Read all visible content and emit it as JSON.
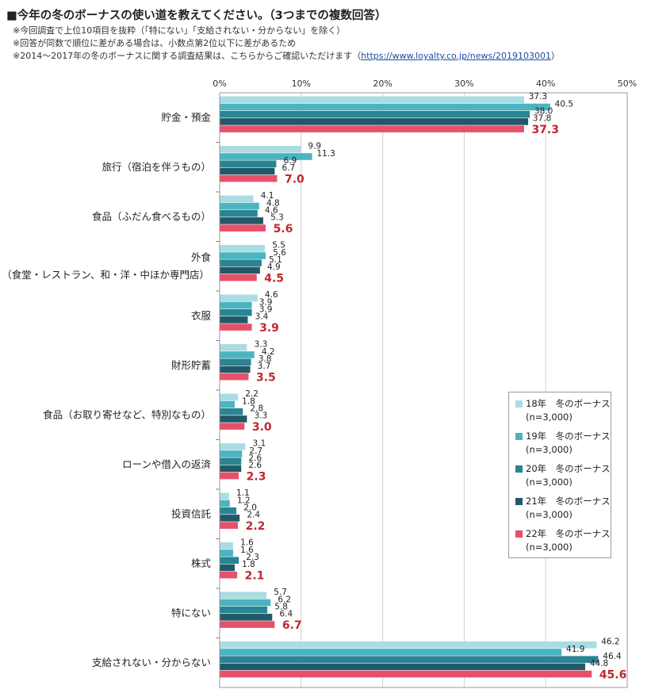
{
  "title": "■今年の冬のボーナスの使い道を教えてください。（3つまでの複数回答）",
  "notes": {
    "line1": "※今回調査で上位10項目を抜粋（「特にない」「支給されない・分からない」を除く）",
    "line2": "※回答が同数で順位に差がある場合は、小数点第2位以下に差があるため",
    "line3_prefix": "※2014～2017年の冬のボーナスに関する調査結果は、こちらからご確認いただけます（",
    "line3_link": "https://www.loyalty.co.jp/news/2019103001",
    "line3_suffix": "）"
  },
  "colors": {
    "s18": "#a9dce3",
    "s19": "#4bb4c0",
    "s20": "#2a8494",
    "s21": "#225968",
    "s22": "#e8506a",
    "highlight_label": "#c0282e"
  },
  "chart_data": {
    "type": "bar",
    "orientation": "horizontal",
    "x_ticks": [
      "0%",
      "10%",
      "20%",
      "30%",
      "40%",
      "50%"
    ],
    "xlim": [
      0,
      50
    ],
    "grid": true,
    "legend_position": "right",
    "categories": [
      [
        "貯金・預金"
      ],
      [
        "旅行（宿泊を伴うもの）"
      ],
      [
        "食品（ふだん食べるもの）"
      ],
      [
        "外食",
        "（食堂・レストラン、和・洋・中ほか専門店）"
      ],
      [
        "衣服"
      ],
      [
        "財形貯蓄"
      ],
      [
        "食品（お取り寄せなど、特別なもの）"
      ],
      [
        "ローンや借入の返済"
      ],
      [
        "投資信託"
      ],
      [
        "株式"
      ],
      [
        "特にない"
      ],
      [
        "支給されない・分からない"
      ]
    ],
    "series": [
      {
        "name": "18年　冬のボーナス",
        "n": "(n=3,000)",
        "color_key": "s18",
        "values": [
          37.3,
          9.9,
          4.1,
          5.5,
          4.6,
          3.3,
          2.2,
          3.1,
          1.1,
          1.6,
          5.7,
          46.2
        ]
      },
      {
        "name": "19年　冬のボーナス",
        "n": "(n=3,000)",
        "color_key": "s19",
        "values": [
          40.5,
          11.3,
          4.8,
          5.6,
          3.9,
          4.2,
          1.8,
          2.7,
          1.2,
          1.6,
          6.2,
          41.9
        ]
      },
      {
        "name": "20年　冬のボーナス",
        "n": "(n=3,000)",
        "color_key": "s20",
        "values": [
          38.0,
          6.9,
          4.6,
          5.1,
          3.9,
          3.8,
          2.8,
          2.6,
          2.0,
          2.3,
          5.8,
          46.4
        ]
      },
      {
        "name": "21年　冬のボーナス",
        "n": "(n=3,000)",
        "color_key": "s21",
        "values": [
          37.8,
          6.7,
          5.3,
          4.9,
          3.4,
          3.7,
          3.3,
          2.6,
          2.4,
          1.8,
          6.4,
          44.8
        ]
      },
      {
        "name": "22年　冬のボーナス",
        "n": "(n=3,000)",
        "color_key": "s22",
        "values": [
          37.3,
          7.0,
          5.6,
          4.5,
          3.9,
          3.5,
          3.0,
          2.3,
          2.2,
          2.1,
          6.7,
          45.6
        ]
      }
    ]
  }
}
